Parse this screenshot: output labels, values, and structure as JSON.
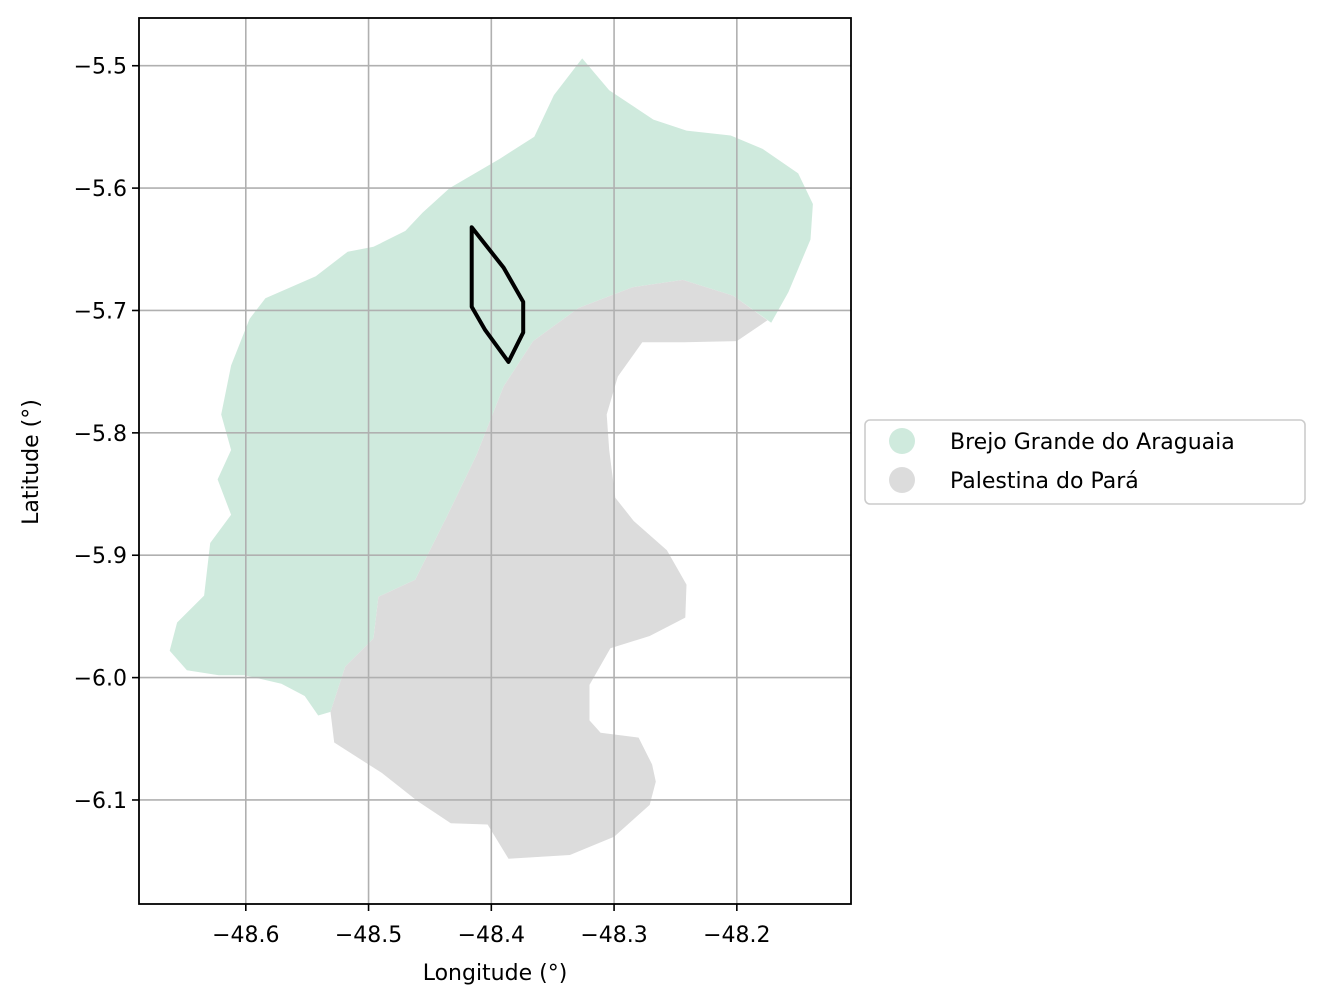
{
  "chart_data": {
    "type": "map",
    "xlabel": "Longitude (°)",
    "ylabel": "Latitude (°)",
    "xlim": [
      -48.687,
      -48.107
    ],
    "ylim": [
      -6.185,
      -5.461
    ],
    "x_ticks": [
      -48.6,
      -48.5,
      -48.4,
      -48.3,
      -48.2
    ],
    "x_tick_labels": [
      "−48.6",
      "−48.5",
      "−48.4",
      "−48.3",
      "−48.2"
    ],
    "y_ticks": [
      -5.5,
      -5.6,
      -5.7,
      -5.8,
      -5.9,
      -6.0,
      -6.1
    ],
    "y_tick_labels": [
      "−5.5",
      "−5.6",
      "−5.7",
      "−5.8",
      "−5.9",
      "−6.0",
      "−6.1"
    ],
    "grid": true,
    "legend_position": "right, outside plot",
    "regions": [
      {
        "name": "Brejo Grande do Araguaia",
        "color": "#cfeadd",
        "polygon": [
          [
            -48.326,
            -5.494
          ],
          [
            -48.304,
            -5.52
          ],
          [
            -48.268,
            -5.544
          ],
          [
            -48.241,
            -5.553
          ],
          [
            -48.205,
            -5.557
          ],
          [
            -48.179,
            -5.568
          ],
          [
            -48.15,
            -5.588
          ],
          [
            -48.138,
            -5.613
          ],
          [
            -48.14,
            -5.642
          ],
          [
            -48.158,
            -5.685
          ],
          [
            -48.172,
            -5.71
          ],
          [
            -48.203,
            -5.688
          ],
          [
            -48.244,
            -5.675
          ],
          [
            -48.285,
            -5.681
          ],
          [
            -48.329,
            -5.698
          ],
          [
            -48.366,
            -5.725
          ],
          [
            -48.39,
            -5.762
          ],
          [
            -48.412,
            -5.818
          ],
          [
            -48.436,
            -5.868
          ],
          [
            -48.462,
            -5.92
          ],
          [
            -48.492,
            -5.934
          ],
          [
            -48.496,
            -5.968
          ],
          [
            -48.519,
            -5.991
          ],
          [
            -48.531,
            -6.028
          ],
          [
            -48.541,
            -6.031
          ],
          [
            -48.552,
            -6.015
          ],
          [
            -48.571,
            -6.005
          ],
          [
            -48.601,
            -5.998
          ],
          [
            -48.622,
            -5.998
          ],
          [
            -48.648,
            -5.994
          ],
          [
            -48.662,
            -5.978
          ],
          [
            -48.656,
            -5.955
          ],
          [
            -48.634,
            -5.933
          ],
          [
            -48.629,
            -5.89
          ],
          [
            -48.612,
            -5.867
          ],
          [
            -48.623,
            -5.838
          ],
          [
            -48.612,
            -5.814
          ],
          [
            -48.62,
            -5.785
          ],
          [
            -48.612,
            -5.745
          ],
          [
            -48.597,
            -5.707
          ],
          [
            -48.584,
            -5.69
          ],
          [
            -48.543,
            -5.672
          ],
          [
            -48.517,
            -5.652
          ],
          [
            -48.496,
            -5.648
          ],
          [
            -48.47,
            -5.635
          ],
          [
            -48.456,
            -5.62
          ],
          [
            -48.434,
            -5.6
          ],
          [
            -48.393,
            -5.576
          ],
          [
            -48.365,
            -5.558
          ],
          [
            -48.349,
            -5.524
          ]
        ]
      },
      {
        "name": "Palestina do Pará",
        "color": "#dcdcdc",
        "polygon": [
          [
            -48.244,
            -5.675
          ],
          [
            -48.203,
            -5.688
          ],
          [
            -48.175,
            -5.708
          ],
          [
            -48.2,
            -5.725
          ],
          [
            -48.243,
            -5.726
          ],
          [
            -48.277,
            -5.726
          ],
          [
            -48.297,
            -5.754
          ],
          [
            -48.306,
            -5.785
          ],
          [
            -48.304,
            -5.814
          ],
          [
            -48.299,
            -5.853
          ],
          [
            -48.284,
            -5.872
          ],
          [
            -48.257,
            -5.896
          ],
          [
            -48.241,
            -5.924
          ],
          [
            -48.242,
            -5.951
          ],
          [
            -48.271,
            -5.966
          ],
          [
            -48.303,
            -5.976
          ],
          [
            -48.32,
            -6.006
          ],
          [
            -48.32,
            -6.035
          ],
          [
            -48.311,
            -6.045
          ],
          [
            -48.28,
            -6.049
          ],
          [
            -48.269,
            -6.071
          ],
          [
            -48.266,
            -6.085
          ],
          [
            -48.271,
            -6.104
          ],
          [
            -48.3,
            -6.13
          ],
          [
            -48.336,
            -6.145
          ],
          [
            -48.386,
            -6.148
          ],
          [
            -48.403,
            -6.12
          ],
          [
            -48.433,
            -6.119
          ],
          [
            -48.46,
            -6.101
          ],
          [
            -48.489,
            -6.078
          ],
          [
            -48.511,
            -6.064
          ],
          [
            -48.528,
            -6.053
          ],
          [
            -48.531,
            -6.028
          ],
          [
            -48.519,
            -5.991
          ],
          [
            -48.496,
            -5.968
          ],
          [
            -48.492,
            -5.934
          ],
          [
            -48.462,
            -5.92
          ],
          [
            -48.436,
            -5.868
          ],
          [
            -48.412,
            -5.818
          ],
          [
            -48.39,
            -5.762
          ],
          [
            -48.366,
            -5.725
          ],
          [
            -48.329,
            -5.698
          ],
          [
            -48.285,
            -5.681
          ]
        ]
      }
    ],
    "outline": {
      "polygon": [
        [
          -48.416,
          -5.632
        ],
        [
          -48.39,
          -5.665
        ],
        [
          -48.374,
          -5.693
        ],
        [
          -48.374,
          -5.718
        ],
        [
          -48.386,
          -5.742
        ],
        [
          -48.405,
          -5.716
        ],
        [
          -48.416,
          -5.697
        ]
      ],
      "color": "#000000"
    }
  }
}
